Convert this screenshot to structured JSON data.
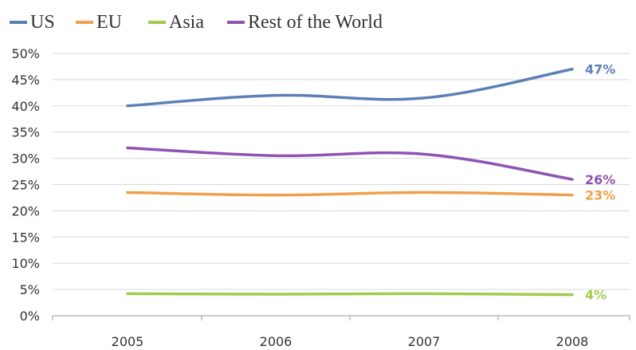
{
  "chart_data": {
    "type": "line",
    "title": "",
    "xlabel": "",
    "ylabel": "",
    "categories": [
      "2005",
      "2006",
      "2007",
      "2008"
    ],
    "ylim": [
      0,
      50
    ],
    "y_ticks": [
      "0%",
      "5%",
      "10%",
      "15%",
      "20%",
      "25%",
      "30%",
      "35%",
      "40%",
      "45%",
      "50%"
    ],
    "grid": true,
    "legend_position": "top-left",
    "series": [
      {
        "name": "US",
        "values": [
          40,
          42,
          41.5,
          47
        ],
        "color": "#5b80b8",
        "end_label": "47%"
      },
      {
        "name": "EU",
        "values": [
          23.5,
          23,
          23.5,
          23
        ],
        "color": "#f0a04b",
        "end_label": "23%"
      },
      {
        "name": "Asia",
        "values": [
          4.2,
          4.1,
          4.2,
          4
        ],
        "color": "#9dcc4a",
        "end_label": "4%"
      },
      {
        "name": "Rest of the World",
        "values": [
          32,
          30.5,
          30.8,
          26
        ],
        "color": "#8e54b4",
        "end_label": "26%"
      }
    ]
  }
}
